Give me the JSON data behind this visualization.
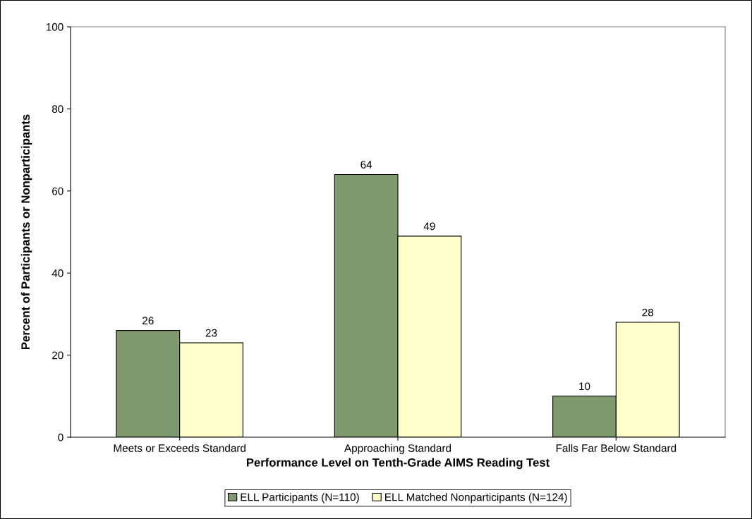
{
  "chart_data": {
    "type": "bar",
    "xlabel": "Performance Level on Tenth-Grade AIMS Reading Test",
    "ylabel": "Percent of Participants or Nonparticipants",
    "categories": [
      "Meets or Exceeds Standard",
      "Approaching Standard",
      "Falls Far Below Standard"
    ],
    "series": [
      {
        "name": "ELL Participants (N=110)",
        "color": "#7f9a6f",
        "values": [
          26,
          64,
          10
        ]
      },
      {
        "name": "ELL Matched Nonparticipants (N=124)",
        "color": "#ffffcc",
        "values": [
          23,
          49,
          28
        ]
      }
    ],
    "ylim": [
      0,
      100
    ],
    "yticks": [
      0,
      20,
      40,
      60,
      80,
      100
    ],
    "grid": false,
    "legend": "bottom",
    "data_labels": true
  }
}
